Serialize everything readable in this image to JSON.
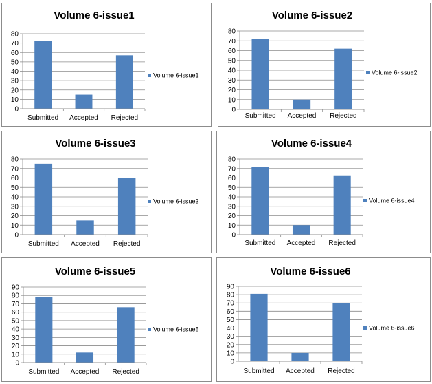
{
  "chart_data": [
    {
      "type": "bar",
      "title": "Volume 6-issue1",
      "categories": [
        "Submitted",
        "Accepted",
        "Rejected"
      ],
      "series": [
        {
          "name": "Volume 6-issue1",
          "values": [
            72,
            15,
            57
          ]
        }
      ],
      "ylim": [
        0,
        80
      ],
      "yticks": [
        0,
        10,
        20,
        30,
        40,
        50,
        60,
        70,
        80
      ],
      "grid": true,
      "legend": "right",
      "color": "#4f81bd"
    },
    {
      "type": "bar",
      "title": "Volume 6-issue2",
      "categories": [
        "Submitted",
        "Accepted",
        "Rejected"
      ],
      "series": [
        {
          "name": "Volume 6-issue2",
          "values": [
            72,
            10,
            62
          ]
        }
      ],
      "ylim": [
        0,
        80
      ],
      "yticks": [
        0,
        10,
        20,
        30,
        40,
        50,
        60,
        70,
        80
      ],
      "grid": true,
      "legend": "right",
      "color": "#4f81bd"
    },
    {
      "type": "bar",
      "title": "Volume 6-issue3",
      "categories": [
        "Submitted",
        "Accepted",
        "Rejected"
      ],
      "series": [
        {
          "name": "Volume 6-issue3",
          "values": [
            75,
            15,
            60
          ]
        }
      ],
      "ylim": [
        0,
        80
      ],
      "yticks": [
        0,
        10,
        20,
        30,
        40,
        50,
        60,
        70,
        80
      ],
      "grid": true,
      "legend": "right",
      "color": "#4f81bd"
    },
    {
      "type": "bar",
      "title": "Volume 6-issue4",
      "categories": [
        "Submitted",
        "Accepted",
        "Rejected"
      ],
      "series": [
        {
          "name": "Volume 6-issue4",
          "values": [
            72,
            10,
            62
          ]
        }
      ],
      "ylim": [
        0,
        80
      ],
      "yticks": [
        0,
        10,
        20,
        30,
        40,
        50,
        60,
        70,
        80
      ],
      "grid": true,
      "legend": "right",
      "color": "#4f81bd"
    },
    {
      "type": "bar",
      "title": "Volume 6-issue5",
      "categories": [
        "Submitted",
        "Accepted",
        "Rejected"
      ],
      "series": [
        {
          "name": "Volume 6-issue5",
          "values": [
            78,
            12,
            66
          ]
        }
      ],
      "ylim": [
        0,
        90
      ],
      "yticks": [
        0,
        10,
        20,
        30,
        40,
        50,
        60,
        70,
        80,
        90
      ],
      "grid": true,
      "legend": "right",
      "color": "#4f81bd"
    },
    {
      "type": "bar",
      "title": "Volume 6-issue6",
      "categories": [
        "Submitted",
        "Accepted",
        "Rejected"
      ],
      "series": [
        {
          "name": "Volume 6-issue6",
          "values": [
            81,
            10,
            70
          ]
        }
      ],
      "ylim": [
        0,
        90
      ],
      "yticks": [
        0,
        10,
        20,
        30,
        40,
        50,
        60,
        70,
        80,
        90
      ],
      "grid": true,
      "legend": "right",
      "color": "#4f81bd"
    }
  ]
}
